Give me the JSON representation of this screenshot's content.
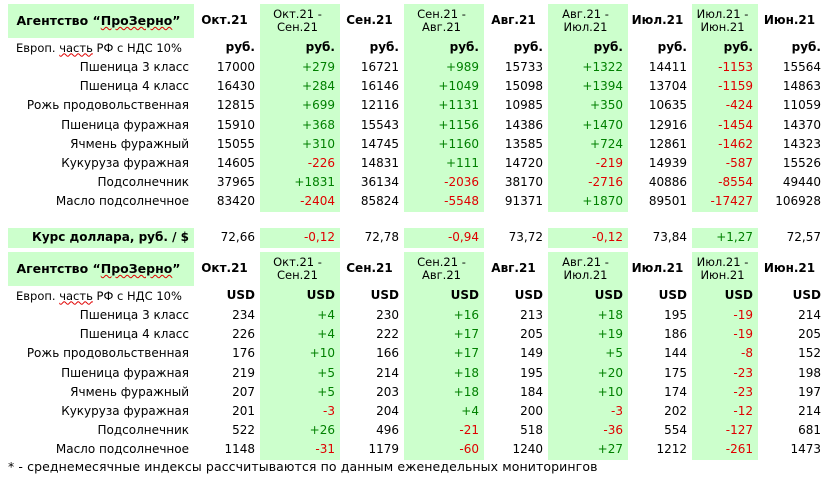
{
  "rub": {
    "agency_prefix": "Агентство “",
    "agency_name": "ПроЗерно",
    "agency_suffix": "”",
    "col_headers": [
      "Окт.21",
      "Окт.21 -\nСен.21",
      "Сен.21",
      "Сен.21 -\nАвг.21",
      "Авг.21",
      "Авг.21 -\nИюл.21",
      "Июл.21",
      "Июл.21 -\nИюн.21",
      "Июн.21"
    ],
    "unit_label": "Европ. часть РФ с НДС 10%",
    "units": [
      "руб.",
      "руб.",
      "руб.",
      "руб.",
      "руб.",
      "руб.",
      "руб.",
      "руб.",
      "руб."
    ],
    "rows": [
      {
        "name": "Пшеница 3 класс",
        "values": [
          "17000",
          "+279",
          "16721",
          "+989",
          "15733",
          "+1322",
          "14411",
          "-1153",
          "15564"
        ]
      },
      {
        "name": "Пшеница 4 класс",
        "values": [
          "16430",
          "+284",
          "16146",
          "+1049",
          "15098",
          "+1394",
          "13704",
          "-1159",
          "14863"
        ]
      },
      {
        "name": "Рожь продовольственная",
        "values": [
          "12815",
          "+699",
          "12116",
          "+1131",
          "10985",
          "+350",
          "10635",
          "-424",
          "11059"
        ]
      },
      {
        "name": "Пшеница фуражная",
        "values": [
          "15910",
          "+368",
          "15543",
          "+1156",
          "14386",
          "+1470",
          "12916",
          "-1454",
          "14370"
        ]
      },
      {
        "name": "Ячмень фуражный",
        "values": [
          "15055",
          "+310",
          "14745",
          "+1160",
          "13585",
          "+724",
          "12861",
          "-1462",
          "14323"
        ]
      },
      {
        "name": "Кукуруза фуражная",
        "values": [
          "14605",
          "-226",
          "14831",
          "+111",
          "14720",
          "-219",
          "14939",
          "-587",
          "15526"
        ]
      },
      {
        "name": "Подсолнечник",
        "values": [
          "37965",
          "+1831",
          "36134",
          "-2036",
          "38170",
          "-2716",
          "40886",
          "-8554",
          "49440"
        ]
      },
      {
        "name": "Масло подсолнечное",
        "values": [
          "83420",
          "-2404",
          "85824",
          "-5548",
          "91371",
          "+1870",
          "89501",
          "-17427",
          "106928"
        ]
      }
    ]
  },
  "rates": {
    "label": "Курс доллара, руб. / $",
    "values": [
      "72,66",
      "-0,12",
      "72,78",
      "-0,94",
      "73,72",
      "-0,12",
      "73,84",
      "+1,27",
      "72,57"
    ]
  },
  "usd": {
    "agency_prefix": "Агентство “",
    "agency_name": "ПроЗерно",
    "agency_suffix": "”",
    "col_headers": [
      "Окт.21",
      "Окт.21 -\nСен.21",
      "Сен.21",
      "Сен.21 -\nАвг.21",
      "Авг.21",
      "Авг.21 -\nИюл.21",
      "Июл.21",
      "Июл.21 -\nИюн.21",
      "Июн.21"
    ],
    "unit_label": "Европ. часть РФ с НДС 10%",
    "units": [
      "USD",
      "USD",
      "USD",
      "USD",
      "USD",
      "USD",
      "USD",
      "USD",
      "USD"
    ],
    "rows": [
      {
        "name": "Пшеница 3 класс",
        "values": [
          "234",
          "+4",
          "230",
          "+16",
          "213",
          "+18",
          "195",
          "-19",
          "214"
        ]
      },
      {
        "name": "Пшеница 4 класс",
        "values": [
          "226",
          "+4",
          "222",
          "+17",
          "205",
          "+19",
          "186",
          "-19",
          "205"
        ]
      },
      {
        "name": "Рожь продовольственная",
        "values": [
          "176",
          "+10",
          "166",
          "+17",
          "149",
          "+5",
          "144",
          "-8",
          "152"
        ]
      },
      {
        "name": "Пшеница фуражная",
        "values": [
          "219",
          "+5",
          "214",
          "+18",
          "195",
          "+20",
          "175",
          "-23",
          "198"
        ]
      },
      {
        "name": "Ячмень фуражный",
        "values": [
          "207",
          "+5",
          "203",
          "+18",
          "184",
          "+10",
          "174",
          "-23",
          "197"
        ]
      },
      {
        "name": "Кукуруза фуражная",
        "values": [
          "201",
          "-3",
          "204",
          "+4",
          "200",
          "-3",
          "202",
          "-12",
          "214"
        ]
      },
      {
        "name": "Подсолнечник",
        "values": [
          "522",
          "+26",
          "496",
          "-21",
          "518",
          "-36",
          "554",
          "-127",
          "681"
        ]
      },
      {
        "name": "Масло подсолнечное",
        "values": [
          "1148",
          "-31",
          "1179",
          "-60",
          "1240",
          "+27",
          "1212",
          "-261",
          "1473"
        ]
      }
    ]
  },
  "footnote": "* - среднемесячные индексы рассчитываются по данным еженедельных мониторингов",
  "colors": {
    "header_bg": "#ccffcc",
    "positive": "#008000",
    "negative": "#e00000"
  }
}
